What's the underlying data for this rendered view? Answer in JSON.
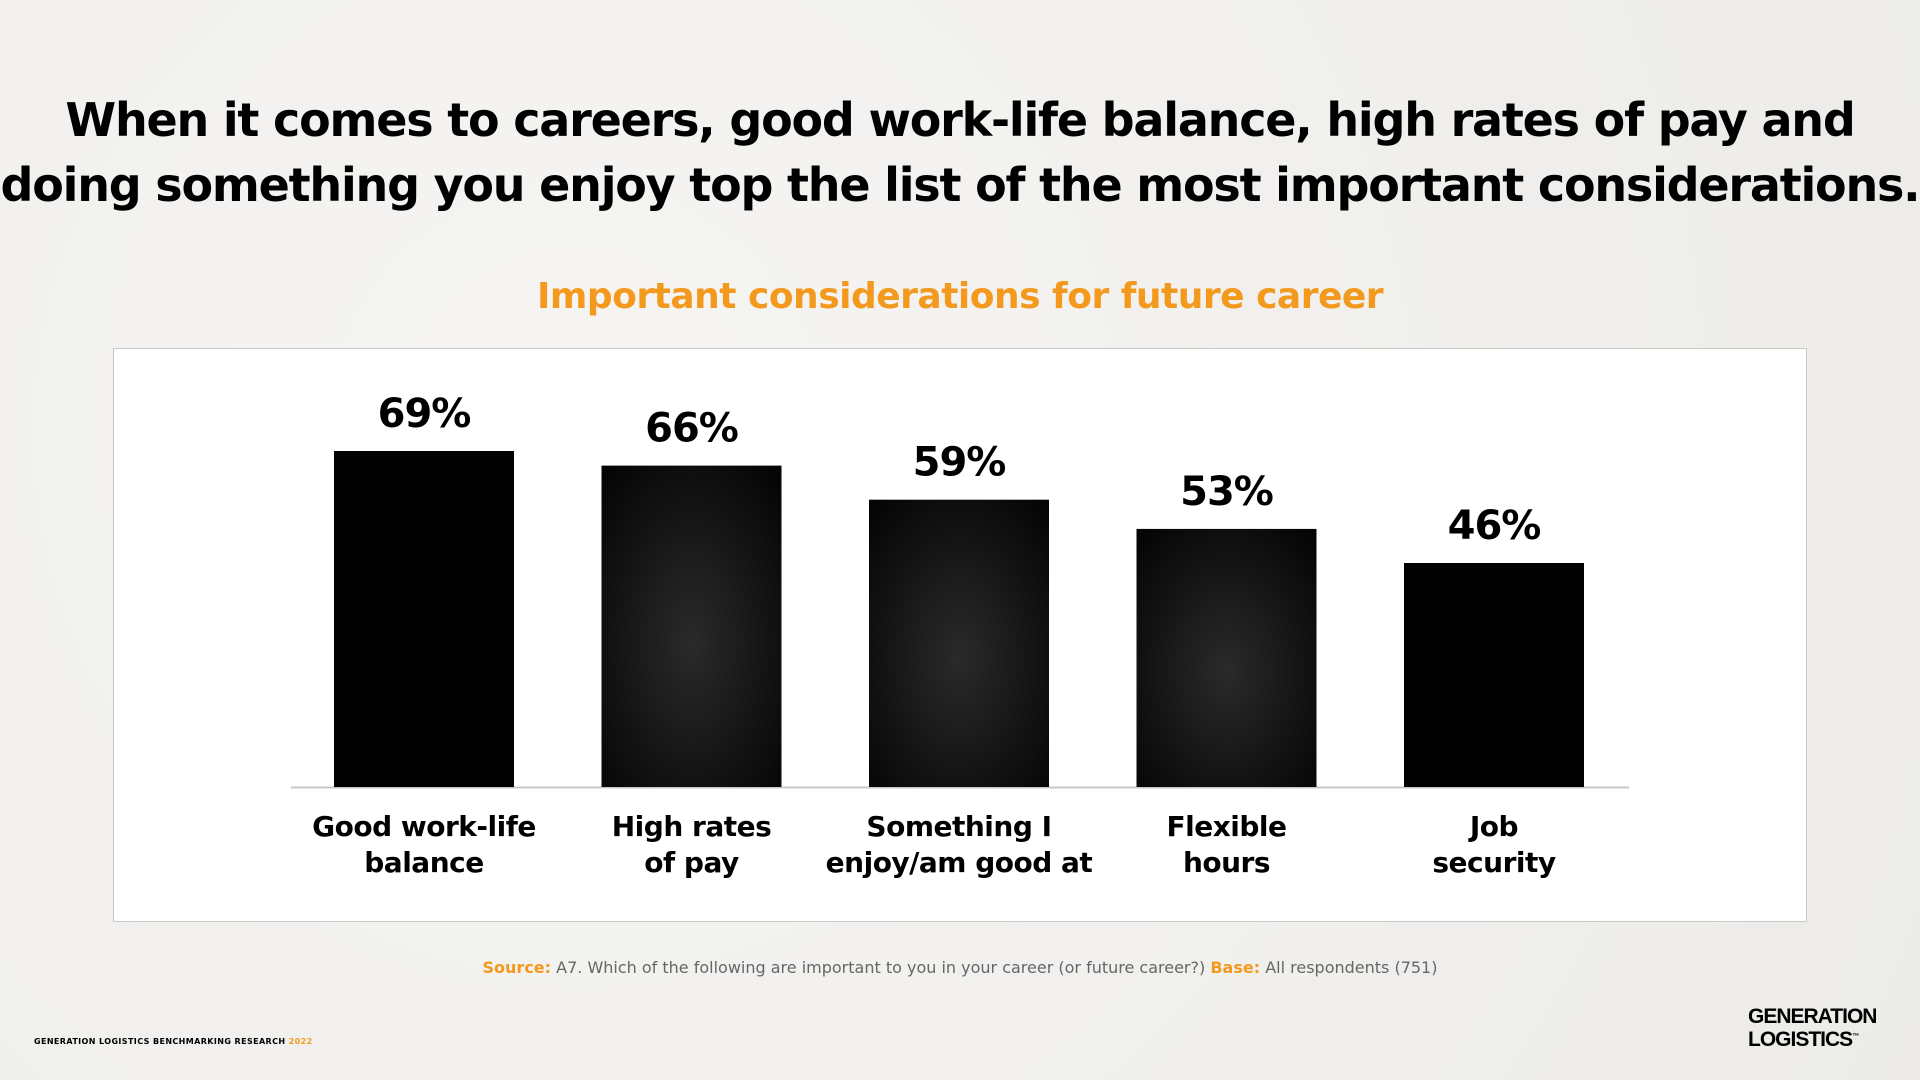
{
  "title": {
    "line1": "When it comes to careers, good work-life balance, high rates of pay and",
    "line2": "doing something you enjoy top the list of the most important considerations."
  },
  "colors": {
    "accent": "#F39A1E",
    "bar": "#000000",
    "text": "#000000"
  },
  "chart_data": {
    "type": "bar",
    "title": "Important considerations for future career",
    "categories": [
      [
        "Good work-life",
        "balance"
      ],
      [
        "High rates",
        "of pay"
      ],
      [
        "Something I",
        "enjoy/am good at"
      ],
      [
        "Flexible",
        "hours"
      ],
      [
        "Job",
        "security"
      ]
    ],
    "values": [
      69,
      66,
      59,
      53,
      46
    ],
    "data_labels": [
      "69%",
      "66%",
      "59%",
      "53%",
      "46%"
    ],
    "xlabel": "",
    "ylabel": "",
    "ylim": [
      0,
      69
    ],
    "grid": false
  },
  "source": {
    "source_label": "Source:",
    "source_text": "A7. Which of the following are important to you in your career (or future career?)",
    "base_label": "Base:",
    "base_text": "All respondents (751)"
  },
  "footer": {
    "text": "GENERATION LOGISTICS BENCHMARKING RESEARCH",
    "year": "2022"
  },
  "logo": {
    "line1": "GENERATION",
    "line2": "LOGISTICS",
    "tm": "™"
  }
}
